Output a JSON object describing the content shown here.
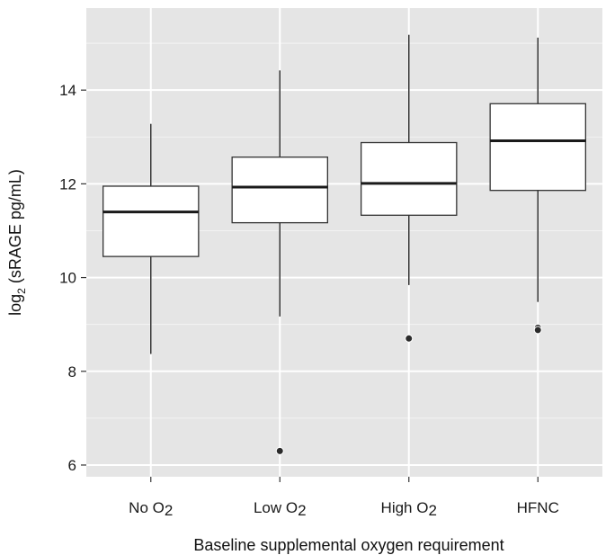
{
  "chart_data": {
    "type": "box",
    "title": "",
    "xlabel": "Baseline supplemental oxygen requirement",
    "ylabel": {
      "prefix": "log",
      "subscript": "2",
      "suffix": " (sRAGE pg/mL)"
    },
    "ylim": [
      5.75,
      15.75
    ],
    "yticks": [
      6,
      8,
      10,
      12,
      14
    ],
    "grid": true,
    "legend": "none",
    "categories": [
      {
        "base": "No O",
        "sub": "2"
      },
      {
        "base": "Low O",
        "sub": "2"
      },
      {
        "base": "High O",
        "sub": "2"
      },
      {
        "base": "HFNC",
        "sub": ""
      }
    ],
    "boxes": [
      {
        "whisker_low": 8.37,
        "q1": 10.45,
        "median": 11.4,
        "q3": 11.95,
        "whisker_high": 13.28,
        "outliers": []
      },
      {
        "whisker_low": 9.17,
        "q1": 11.17,
        "median": 11.93,
        "q3": 12.57,
        "whisker_high": 14.42,
        "outliers": [
          6.3
        ]
      },
      {
        "whisker_low": 9.84,
        "q1": 11.33,
        "median": 12.01,
        "q3": 12.88,
        "whisker_high": 15.18,
        "outliers": [
          8.7
        ]
      },
      {
        "whisker_low": 9.48,
        "q1": 11.86,
        "median": 12.92,
        "q3": 13.71,
        "whisker_high": 15.12,
        "outliers": [
          8.93,
          8.88
        ]
      }
    ],
    "colors": {
      "panel": "#e5e5e5",
      "grid": "#ffffff",
      "box_fill": "#ffffff",
      "box_stroke": "#333333",
      "outlier": "#2b2b2b"
    }
  }
}
